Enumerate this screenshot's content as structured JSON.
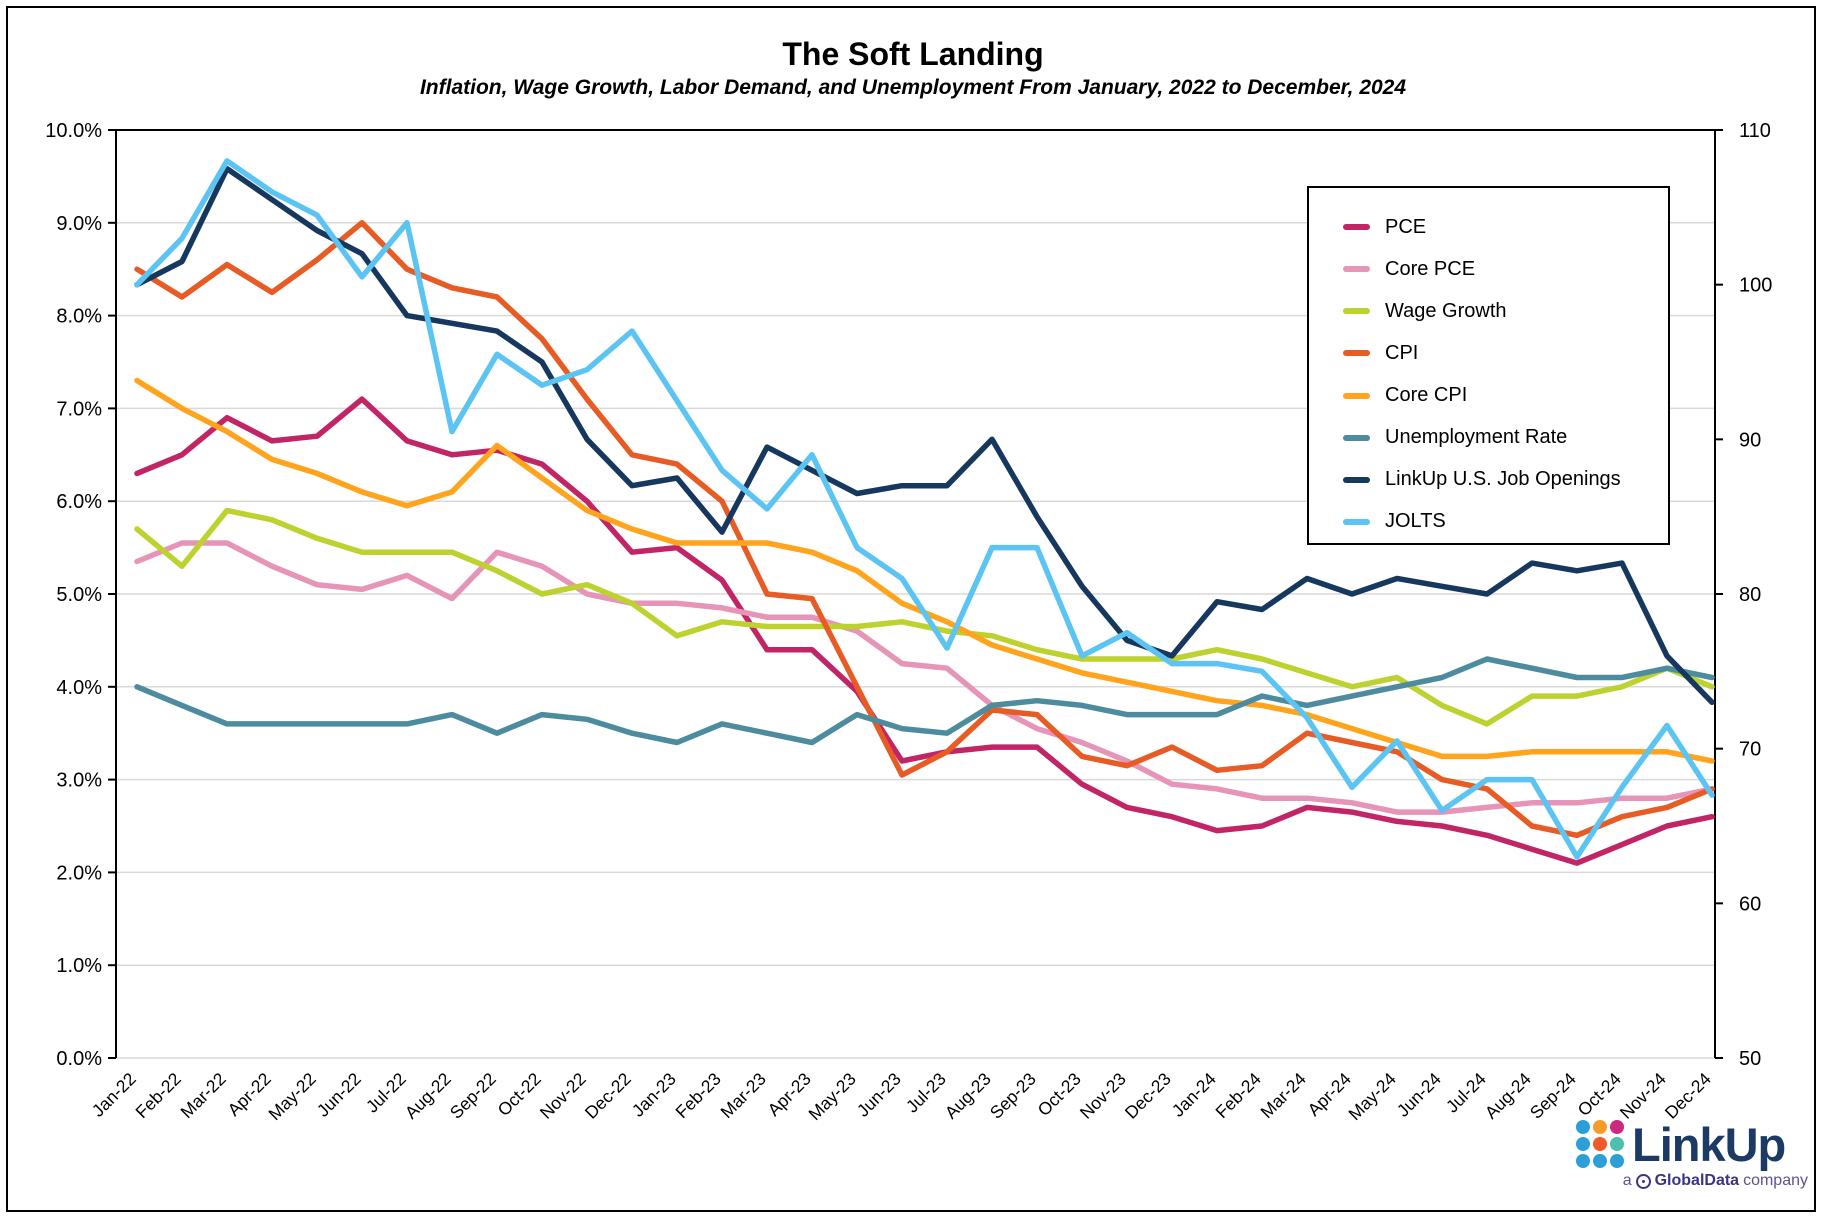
{
  "header": {
    "title": "The Soft Landing",
    "subtitle": "Inflation, Wage Growth, Labor Demand, and Unemployment From January, 2022 to December, 2024"
  },
  "chart_data": {
    "type": "line",
    "title": "The Soft Landing",
    "grid": "horizontal",
    "legend_position": "top-right-inside",
    "x_labels": [
      "Jan-22",
      "Feb-22",
      "Mar-22",
      "Apr-22",
      "May-22",
      "Jun-22",
      "Jul-22",
      "Aug-22",
      "Sep-22",
      "Oct-22",
      "Nov-22",
      "Dec-22",
      "Jan-23",
      "Feb-23",
      "Mar-23",
      "Apr-23",
      "May-23",
      "Jun-23",
      "Jul-23",
      "Aug-23",
      "Sep-23",
      "Oct-23",
      "Nov-23",
      "Dec-23",
      "Jan-24",
      "Feb-24",
      "Mar-24",
      "Apr-24",
      "May-24",
      "Jun-24",
      "Jul-24",
      "Aug-24",
      "Sep-24",
      "Oct-24",
      "Nov-24",
      "Dec-24"
    ],
    "left_axis": {
      "min": 0,
      "max": 10,
      "step": 1,
      "labels": [
        "0.0%",
        "1.0%",
        "2.0%",
        "3.0%",
        "4.0%",
        "5.0%",
        "6.0%",
        "7.0%",
        "8.0%",
        "9.0%",
        "10.0%"
      ]
    },
    "right_axis": {
      "min": 50,
      "max": 110,
      "step": 10,
      "labels": [
        "50",
        "60",
        "70",
        "80",
        "90",
        "100",
        "110"
      ]
    },
    "grid_color": "#D9D9D9",
    "series": [
      {
        "name": "PCE",
        "color": "#C22566",
        "axis": "left",
        "values": [
          6.3,
          6.5,
          6.9,
          6.65,
          6.7,
          7.1,
          6.65,
          6.5,
          6.55,
          6.4,
          6.0,
          5.45,
          5.5,
          5.15,
          4.4,
          4.4,
          3.95,
          3.2,
          3.3,
          3.35,
          3.35,
          2.95,
          2.7,
          2.6,
          2.45,
          2.5,
          2.7,
          2.65,
          2.55,
          2.5,
          2.4,
          2.25,
          2.1,
          2.3,
          2.5,
          2.6
        ]
      },
      {
        "name": "Core PCE",
        "color": "#E694B8",
        "axis": "left",
        "values": [
          5.35,
          5.55,
          5.55,
          5.3,
          5.1,
          5.05,
          5.2,
          4.95,
          5.45,
          5.3,
          5.0,
          4.9,
          4.9,
          4.85,
          4.75,
          4.75,
          4.6,
          4.25,
          4.2,
          3.8,
          3.55,
          3.4,
          3.2,
          2.95,
          2.9,
          2.8,
          2.8,
          2.75,
          2.65,
          2.65,
          2.7,
          2.75,
          2.75,
          2.8,
          2.8,
          2.9
        ]
      },
      {
        "name": "Wage Growth",
        "color": "#BDD12F",
        "axis": "left",
        "values": [
          5.7,
          5.3,
          5.9,
          5.8,
          5.6,
          5.45,
          5.45,
          5.45,
          5.25,
          5.0,
          5.1,
          4.9,
          4.55,
          4.7,
          4.65,
          4.65,
          4.65,
          4.7,
          4.6,
          4.55,
          4.4,
          4.3,
          4.3,
          4.3,
          4.4,
          4.3,
          4.15,
          4.0,
          4.1,
          3.8,
          3.6,
          3.9,
          3.9,
          4.0,
          4.2,
          4.0
        ]
      },
      {
        "name": "CPI",
        "color": "#E65C24",
        "axis": "left",
        "values": [
          8.5,
          8.2,
          8.55,
          8.25,
          8.6,
          9.0,
          8.5,
          8.3,
          8.2,
          7.75,
          7.1,
          6.5,
          6.4,
          6.0,
          5.0,
          4.95,
          4.0,
          3.05,
          3.3,
          3.75,
          3.7,
          3.25,
          3.15,
          3.35,
          3.1,
          3.15,
          3.5,
          3.4,
          3.3,
          3.0,
          2.9,
          2.5,
          2.4,
          2.6,
          2.7,
          2.9
        ]
      },
      {
        "name": "Core CPI",
        "color": "#FFA41C",
        "axis": "left",
        "values": [
          7.3,
          7.0,
          6.75,
          6.45,
          6.3,
          6.1,
          5.95,
          6.1,
          6.6,
          6.25,
          5.9,
          5.7,
          5.55,
          5.55,
          5.55,
          5.45,
          5.25,
          4.9,
          4.7,
          4.45,
          4.3,
          4.15,
          4.05,
          3.95,
          3.85,
          3.8,
          3.7,
          3.55,
          3.4,
          3.25,
          3.25,
          3.3,
          3.3,
          3.3,
          3.3,
          3.2
        ]
      },
      {
        "name": "Unemployment Rate",
        "color": "#4C8C9E",
        "axis": "left",
        "values": [
          4.0,
          3.8,
          3.6,
          3.6,
          3.6,
          3.6,
          3.6,
          3.7,
          3.5,
          3.7,
          3.65,
          3.5,
          3.4,
          3.6,
          3.5,
          3.4,
          3.7,
          3.55,
          3.5,
          3.8,
          3.85,
          3.8,
          3.7,
          3.7,
          3.7,
          3.9,
          3.8,
          3.9,
          4.0,
          4.1,
          4.3,
          4.2,
          4.1,
          4.1,
          4.2,
          4.1
        ]
      },
      {
        "name": "LinkUp U.S. Job Openings",
        "color": "#16375E",
        "axis": "right",
        "values": [
          100,
          101.5,
          107.5,
          105.5,
          103.5,
          102,
          98,
          97.5,
          97,
          95,
          90,
          87,
          87.5,
          84,
          89.5,
          88,
          86.5,
          87,
          87,
          90,
          85,
          80.5,
          77,
          76,
          79.5,
          79,
          81,
          80,
          81,
          80.5,
          80,
          82,
          81.5,
          82,
          76,
          73
        ]
      },
      {
        "name": "JOLTS",
        "color": "#5BC4F2",
        "axis": "right",
        "values": [
          100,
          103,
          108,
          106,
          104.5,
          100.5,
          104,
          90.5,
          95.5,
          93.5,
          94.5,
          97,
          92.5,
          88,
          85.5,
          89,
          83,
          81,
          76.5,
          83,
          83,
          76,
          77.5,
          75.5,
          75.5,
          75,
          72,
          67.5,
          70.5,
          66,
          68,
          68,
          63,
          67.5,
          71.5,
          67
        ]
      }
    ]
  },
  "logo": {
    "brand": "LinkUp",
    "tagline_prefix": "a",
    "tagline_brand": "GlobalData",
    "tagline_suffix": "company",
    "dot_colors": [
      "#2D9FD8",
      "#F59C28",
      "#CB2B7F",
      "#2D9FD8",
      "#F05A28",
      "#4CBFAD",
      "#2D9FD8",
      "#2D9FD8",
      "#2D9FD8"
    ]
  }
}
